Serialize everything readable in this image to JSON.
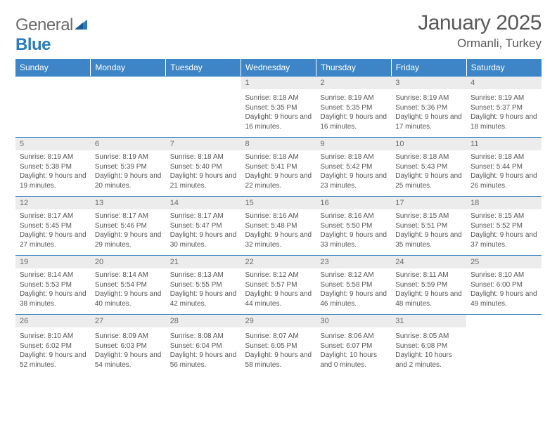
{
  "brand": {
    "part1": "General",
    "part2": "Blue"
  },
  "title": "January 2025",
  "subtitle": "Ormanli, Turkey",
  "headers": [
    "Sunday",
    "Monday",
    "Tuesday",
    "Wednesday",
    "Thursday",
    "Friday",
    "Saturday"
  ],
  "colors": {
    "header_bg": "#3d85c6",
    "header_text": "#ffffff",
    "daynum_bg": "#ececec",
    "rule": "#3d85c6",
    "text": "#555555",
    "title": "#5a5a5a"
  },
  "weeks": [
    [
      null,
      null,
      null,
      {
        "n": "1",
        "sunrise": "8:18 AM",
        "sunset": "5:35 PM",
        "daylight": "9 hours and 16 minutes."
      },
      {
        "n": "2",
        "sunrise": "8:19 AM",
        "sunset": "5:35 PM",
        "daylight": "9 hours and 16 minutes."
      },
      {
        "n": "3",
        "sunrise": "8:19 AM",
        "sunset": "5:36 PM",
        "daylight": "9 hours and 17 minutes."
      },
      {
        "n": "4",
        "sunrise": "8:19 AM",
        "sunset": "5:37 PM",
        "daylight": "9 hours and 18 minutes."
      }
    ],
    [
      {
        "n": "5",
        "sunrise": "8:19 AM",
        "sunset": "5:38 PM",
        "daylight": "9 hours and 19 minutes."
      },
      {
        "n": "6",
        "sunrise": "8:19 AM",
        "sunset": "5:39 PM",
        "daylight": "9 hours and 20 minutes."
      },
      {
        "n": "7",
        "sunrise": "8:18 AM",
        "sunset": "5:40 PM",
        "daylight": "9 hours and 21 minutes."
      },
      {
        "n": "8",
        "sunrise": "8:18 AM",
        "sunset": "5:41 PM",
        "daylight": "9 hours and 22 minutes."
      },
      {
        "n": "9",
        "sunrise": "8:18 AM",
        "sunset": "5:42 PM",
        "daylight": "9 hours and 23 minutes."
      },
      {
        "n": "10",
        "sunrise": "8:18 AM",
        "sunset": "5:43 PM",
        "daylight": "9 hours and 25 minutes."
      },
      {
        "n": "11",
        "sunrise": "8:18 AM",
        "sunset": "5:44 PM",
        "daylight": "9 hours and 26 minutes."
      }
    ],
    [
      {
        "n": "12",
        "sunrise": "8:17 AM",
        "sunset": "5:45 PM",
        "daylight": "9 hours and 27 minutes."
      },
      {
        "n": "13",
        "sunrise": "8:17 AM",
        "sunset": "5:46 PM",
        "daylight": "9 hours and 29 minutes."
      },
      {
        "n": "14",
        "sunrise": "8:17 AM",
        "sunset": "5:47 PM",
        "daylight": "9 hours and 30 minutes."
      },
      {
        "n": "15",
        "sunrise": "8:16 AM",
        "sunset": "5:48 PM",
        "daylight": "9 hours and 32 minutes."
      },
      {
        "n": "16",
        "sunrise": "8:16 AM",
        "sunset": "5:50 PM",
        "daylight": "9 hours and 33 minutes."
      },
      {
        "n": "17",
        "sunrise": "8:15 AM",
        "sunset": "5:51 PM",
        "daylight": "9 hours and 35 minutes."
      },
      {
        "n": "18",
        "sunrise": "8:15 AM",
        "sunset": "5:52 PM",
        "daylight": "9 hours and 37 minutes."
      }
    ],
    [
      {
        "n": "19",
        "sunrise": "8:14 AM",
        "sunset": "5:53 PM",
        "daylight": "9 hours and 38 minutes."
      },
      {
        "n": "20",
        "sunrise": "8:14 AM",
        "sunset": "5:54 PM",
        "daylight": "9 hours and 40 minutes."
      },
      {
        "n": "21",
        "sunrise": "8:13 AM",
        "sunset": "5:55 PM",
        "daylight": "9 hours and 42 minutes."
      },
      {
        "n": "22",
        "sunrise": "8:12 AM",
        "sunset": "5:57 PM",
        "daylight": "9 hours and 44 minutes."
      },
      {
        "n": "23",
        "sunrise": "8:12 AM",
        "sunset": "5:58 PM",
        "daylight": "9 hours and 46 minutes."
      },
      {
        "n": "24",
        "sunrise": "8:11 AM",
        "sunset": "5:59 PM",
        "daylight": "9 hours and 48 minutes."
      },
      {
        "n": "25",
        "sunrise": "8:10 AM",
        "sunset": "6:00 PM",
        "daylight": "9 hours and 49 minutes."
      }
    ],
    [
      {
        "n": "26",
        "sunrise": "8:10 AM",
        "sunset": "6:02 PM",
        "daylight": "9 hours and 52 minutes."
      },
      {
        "n": "27",
        "sunrise": "8:09 AM",
        "sunset": "6:03 PM",
        "daylight": "9 hours and 54 minutes."
      },
      {
        "n": "28",
        "sunrise": "8:08 AM",
        "sunset": "6:04 PM",
        "daylight": "9 hours and 56 minutes."
      },
      {
        "n": "29",
        "sunrise": "8:07 AM",
        "sunset": "6:05 PM",
        "daylight": "9 hours and 58 minutes."
      },
      {
        "n": "30",
        "sunrise": "8:06 AM",
        "sunset": "6:07 PM",
        "daylight": "10 hours and 0 minutes."
      },
      {
        "n": "31",
        "sunrise": "8:05 AM",
        "sunset": "6:08 PM",
        "daylight": "10 hours and 2 minutes."
      },
      null
    ]
  ],
  "labels": {
    "sunrise": "Sunrise: ",
    "sunset": "Sunset: ",
    "daylight": "Daylight: "
  }
}
